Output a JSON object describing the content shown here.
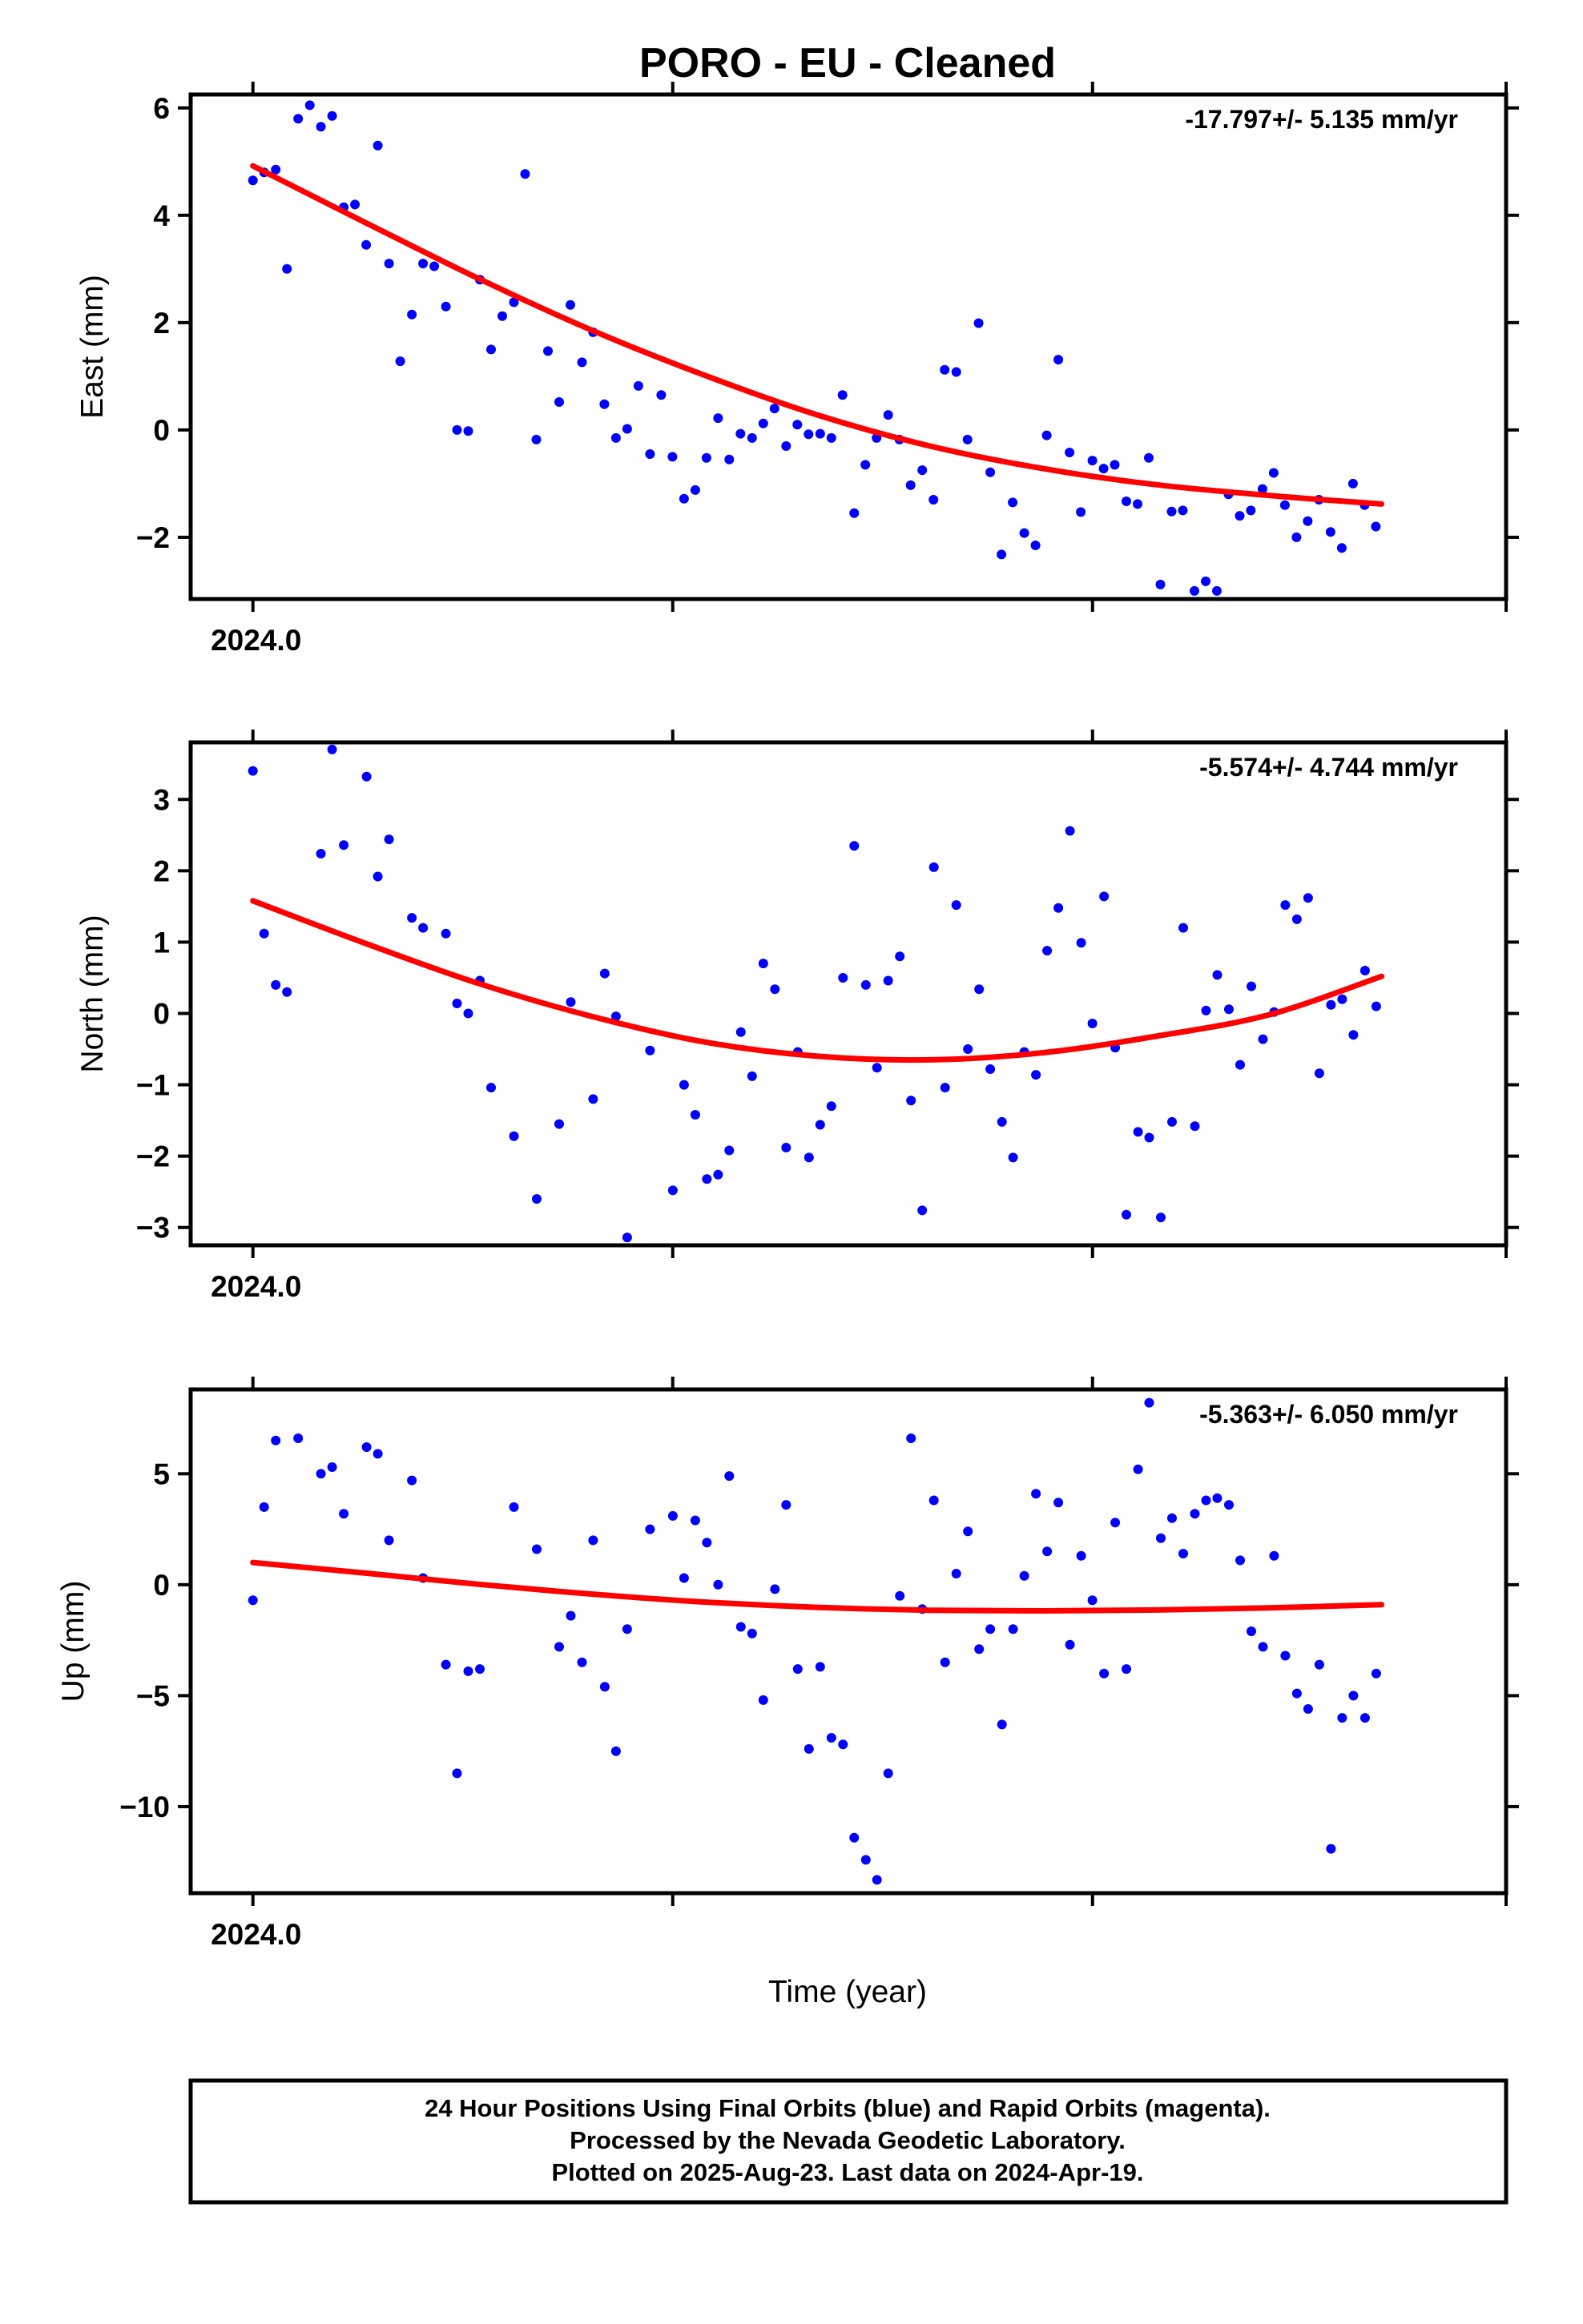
{
  "title": "PORO  - EU - Cleaned",
  "colors": {
    "points": "#0000ff",
    "fit": "#ff0000",
    "frame": "#000000"
  },
  "chart_data": [
    {
      "type": "scatter",
      "ylabel": "East (mm)",
      "rate_text": "-17.797+/- 5.135 mm/yr",
      "xtick_label": "2024.0",
      "xlim": [
        2023.985,
        2024.302
      ],
      "ylim": [
        -3.15,
        6.25
      ],
      "yticks": [
        -2,
        0,
        2,
        4,
        6
      ],
      "ytick_labels": [
        "−2",
        "0",
        "2",
        "4",
        "6"
      ],
      "x": [
        2024.0,
        2024.0027,
        2024.0055,
        2024.0082,
        2024.0109,
        2024.0137,
        2024.0164,
        2024.0191,
        2024.0219,
        2024.0246,
        2024.0273,
        2024.0301,
        2024.0328,
        2024.0355,
        2024.0383,
        2024.041,
        2024.0437,
        2024.0465,
        2024.0492,
        2024.0519,
        2024.0547,
        2024.0574,
        2024.0601,
        2024.0629,
        2024.0656,
        2024.0683,
        2024.0711,
        2024.0738,
        2024.0765,
        2024.0793,
        2024.082,
        2024.0847,
        2024.0875,
        2024.0902,
        2024.0929,
        2024.0957,
        2024.0984,
        2024.1011,
        2024.1039,
        2024.1066,
        2024.1093,
        2024.1121,
        2024.1148,
        2024.1175,
        2024.1203,
        2024.123,
        2024.1257,
        2024.1285,
        2024.1312,
        2024.1339,
        2024.1367,
        2024.1394,
        2024.1421,
        2024.1449,
        2024.1476,
        2024.1503,
        2024.1531,
        2024.1558,
        2024.1585,
        2024.1613,
        2024.164,
        2024.1667,
        2024.1695,
        2024.1722,
        2024.1749,
        2024.1777,
        2024.1804,
        2024.1831,
        2024.1859,
        2024.1886,
        2024.1913,
        2024.1941,
        2024.1968,
        2024.1995,
        2024.2023,
        2024.205,
        2024.2077,
        2024.2105,
        2024.2132,
        2024.2159,
        2024.2187,
        2024.2214,
        2024.2241,
        2024.2269,
        2024.2296,
        2024.2323,
        2024.2351,
        2024.2378,
        2024.2405,
        2024.2433,
        2024.246,
        2024.2487,
        2024.2515,
        2024.2542,
        2024.2569,
        2024.2597,
        2024.2624,
        2024.2651,
        2024.2679,
        2024.2706
      ],
      "y": [
        4.65,
        4.8,
        4.85,
        3.0,
        5.8,
        6.05,
        5.65,
        5.85,
        4.15,
        4.2,
        3.45,
        5.3,
        3.1,
        1.28,
        2.15,
        3.1,
        3.05,
        2.3,
        0.0,
        -0.02,
        2.8,
        1.5,
        2.12,
        2.38,
        4.77,
        -0.18,
        1.47,
        0.52,
        2.33,
        1.26,
        1.82,
        0.48,
        -0.15,
        0.02,
        0.82,
        -0.45,
        0.65,
        -0.5,
        -1.28,
        -1.12,
        -0.52,
        0.22,
        -0.55,
        -0.07,
        -0.15,
        0.12,
        0.4,
        -0.3,
        0.1,
        -0.08,
        -0.07,
        -0.15,
        0.65,
        -1.55,
        -0.65,
        -0.15,
        0.28,
        -0.18,
        -1.03,
        -0.75,
        -1.3,
        1.12,
        1.08,
        -0.18,
        1.99,
        -0.79,
        -2.32,
        -1.35,
        -1.92,
        -2.15,
        -0.1,
        1.31,
        -0.42,
        -1.53,
        -0.57,
        -0.72,
        -0.65,
        -1.33,
        -1.38,
        -0.52,
        -2.88,
        -1.52,
        -1.5,
        -3.0,
        -2.82,
        -3.0,
        -1.2,
        -1.6,
        -1.5,
        -1.1,
        -0.8,
        -1.4,
        -2.0,
        -1.7,
        -1.3,
        -1.9,
        -2.2,
        -1.0,
        -1.4,
        -1.8
      ],
      "fit_x": [
        2024.0,
        2024.0272,
        2024.0544,
        2024.0816,
        2024.1088,
        2024.136,
        2024.1632,
        2024.1904,
        2024.2176,
        2024.2448,
        2024.272
      ],
      "fit_y": [
        4.92,
        3.86,
        2.82,
        1.86,
        1.02,
        0.28,
        -0.3,
        -0.72,
        -1.02,
        -1.22,
        -1.38
      ]
    },
    {
      "type": "scatter",
      "ylabel": "North (mm)",
      "rate_text": "-5.574+/- 4.744 mm/yr",
      "xtick_label": "2024.0",
      "xlim": [
        2023.985,
        2024.302
      ],
      "ylim": [
        -3.25,
        3.8
      ],
      "yticks": [
        -3,
        -2,
        -1,
        0,
        1,
        2,
        3
      ],
      "ytick_labels": [
        "−3",
        "−2",
        "−1",
        "0",
        "1",
        "2",
        "3"
      ],
      "x": [
        2024.0,
        2024.0027,
        2024.0055,
        2024.0082,
        2024.0164,
        2024.0191,
        2024.0219,
        2024.0274,
        2024.0301,
        2024.0328,
        2024.0383,
        2024.041,
        2024.0465,
        2024.0492,
        2024.0519,
        2024.0547,
        2024.0574,
        2024.0629,
        2024.0684,
        2024.0738,
        2024.0766,
        2024.082,
        2024.0848,
        2024.0875,
        2024.0902,
        2024.0957,
        2024.1012,
        2024.1039,
        2024.1066,
        2024.1094,
        2024.1121,
        2024.1148,
        2024.1176,
        2024.1203,
        2024.123,
        2024.1258,
        2024.1285,
        2024.1313,
        2024.134,
        2024.1367,
        2024.1394,
        2024.1422,
        2024.1449,
        2024.1477,
        2024.1504,
        2024.1531,
        2024.1559,
        2024.1586,
        2024.1613,
        2024.1641,
        2024.1668,
        2024.1695,
        2024.1723,
        2024.175,
        2024.1777,
        2024.1805,
        2024.1832,
        2024.1859,
        2024.1887,
        2024.1914,
        2024.1941,
        2024.1969,
        2024.1996,
        2024.2023,
        2024.2051,
        2024.2078,
        2024.2105,
        2024.2133,
        2024.216,
        2024.2188,
        2024.2215,
        2024.2242,
        2024.227,
        2024.2297,
        2024.2324,
        2024.2352,
        2024.2379,
        2024.2406,
        2024.2434,
        2024.2461,
        2024.2488,
        2024.2516,
        2024.2543,
        2024.257,
        2024.2598,
        2024.2625,
        2024.2652,
        2024.268,
        2024.2707
      ],
      "y": [
        3.4,
        1.12,
        0.4,
        0.3,
        2.24,
        3.7,
        2.36,
        3.32,
        1.92,
        2.44,
        1.34,
        1.2,
        1.12,
        0.14,
        0.0,
        0.46,
        -1.04,
        -1.72,
        -2.6,
        -1.55,
        0.16,
        -1.2,
        0.56,
        -0.04,
        -3.14,
        -0.52,
        -2.48,
        -1.0,
        -1.42,
        -2.32,
        -2.26,
        -1.92,
        -0.26,
        -0.88,
        0.7,
        0.34,
        -1.88,
        -0.54,
        -2.02,
        -1.56,
        -1.3,
        0.5,
        2.35,
        0.4,
        -0.76,
        0.46,
        0.8,
        -1.22,
        -2.76,
        2.05,
        -1.04,
        1.52,
        -0.5,
        0.34,
        -0.78,
        -1.52,
        -2.02,
        -0.54,
        -0.86,
        0.88,
        1.48,
        2.56,
        0.99,
        -0.14,
        1.64,
        -0.48,
        -2.82,
        -1.66,
        -1.74,
        -2.86,
        -1.52,
        1.2,
        -1.58,
        0.04,
        0.54,
        0.06,
        -0.72,
        0.38,
        -0.36,
        0.02,
        1.52,
        1.32,
        1.62,
        -0.84,
        0.12,
        0.2,
        -0.3,
        0.6,
        0.1
      ],
      "fit_x": [
        2024.0,
        2024.0272,
        2024.0544,
        2024.0816,
        2024.1088,
        2024.136,
        2024.1632,
        2024.1904,
        2024.2176,
        2024.2448,
        2024.272
      ],
      "fit_y": [
        1.58,
        0.98,
        0.42,
        -0.04,
        -0.4,
        -0.6,
        -0.65,
        -0.55,
        -0.32,
        -0.02,
        0.52
      ]
    },
    {
      "type": "scatter",
      "ylabel": "Up (mm)",
      "rate_text": "-5.363+/- 6.050 mm/yr",
      "xtick_label": "2024.0",
      "xlim": [
        2023.985,
        2024.302
      ],
      "ylim": [
        -13.9,
        8.8
      ],
      "yticks": [
        -10,
        -5,
        0,
        5
      ],
      "ytick_labels": [
        "−10",
        "−5",
        "0",
        "5"
      ],
      "x": [
        2024.0,
        2024.0027,
        2024.0055,
        2024.0109,
        2024.0164,
        2024.0191,
        2024.0219,
        2024.0274,
        2024.0301,
        2024.0328,
        2024.0383,
        2024.041,
        2024.0465,
        2024.0492,
        2024.0519,
        2024.0547,
        2024.0629,
        2024.0684,
        2024.0738,
        2024.0766,
        2024.0793,
        2024.082,
        2024.0848,
        2024.0875,
        2024.0902,
        2024.0957,
        2024.1012,
        2024.1039,
        2024.1066,
        2024.1094,
        2024.1121,
        2024.1148,
        2024.1176,
        2024.1203,
        2024.123,
        2024.1258,
        2024.1285,
        2024.1313,
        2024.134,
        2024.1367,
        2024.1394,
        2024.1422,
        2024.1449,
        2024.1477,
        2024.1504,
        2024.1531,
        2024.1559,
        2024.1586,
        2024.1613,
        2024.1641,
        2024.1668,
        2024.1695,
        2024.1723,
        2024.175,
        2024.1777,
        2024.1805,
        2024.1832,
        2024.1859,
        2024.1887,
        2024.1914,
        2024.1941,
        2024.1969,
        2024.1996,
        2024.2023,
        2024.2051,
        2024.2078,
        2024.2105,
        2024.2133,
        2024.216,
        2024.2188,
        2024.2215,
        2024.2242,
        2024.227,
        2024.2297,
        2024.2324,
        2024.2352,
        2024.2379,
        2024.2406,
        2024.2434,
        2024.2461,
        2024.2488,
        2024.2516,
        2024.2543,
        2024.257,
        2024.2598,
        2024.2625,
        2024.2652,
        2024.268,
        2024.2707
      ],
      "y": [
        -0.7,
        3.5,
        6.5,
        6.6,
        5.0,
        5.3,
        3.2,
        6.2,
        5.9,
        2.0,
        4.7,
        0.3,
        -3.6,
        -8.5,
        -3.9,
        -3.8,
        3.5,
        1.6,
        -2.8,
        -1.4,
        -3.5,
        2.0,
        -4.6,
        -7.5,
        -2.0,
        2.5,
        3.1,
        0.3,
        2.9,
        1.9,
        0.0,
        4.9,
        -1.9,
        -2.2,
        -5.2,
        -0.2,
        3.6,
        -3.8,
        -7.4,
        -3.7,
        -6.9,
        -7.2,
        -11.4,
        -12.4,
        -13.3,
        -8.5,
        -0.5,
        6.6,
        -1.1,
        3.8,
        -3.5,
        0.5,
        2.4,
        -2.9,
        -2.0,
        -6.3,
        -2.0,
        0.4,
        4.1,
        1.5,
        3.7,
        -2.7,
        1.3,
        -0.7,
        -4.0,
        2.8,
        -3.8,
        5.2,
        8.2,
        2.1,
        3.0,
        1.4,
        3.2,
        3.8,
        3.9,
        3.6,
        1.1,
        -2.1,
        -2.8,
        1.3,
        -3.2,
        -4.9,
        -5.6,
        -3.6,
        -11.9,
        -6.0,
        -5.0,
        -6.0,
        -4.0
      ],
      "fit_x": [
        2024.0,
        2024.0272,
        2024.0544,
        2024.0816,
        2024.1088,
        2024.136,
        2024.1632,
        2024.1904,
        2024.2176,
        2024.2448,
        2024.272
      ],
      "fit_y": [
        1.0,
        0.52,
        0.02,
        -0.42,
        -0.78,
        -1.02,
        -1.15,
        -1.18,
        -1.14,
        -1.04,
        -0.9
      ]
    }
  ],
  "xlabel": "Time (year)",
  "footer": {
    "line1": "24 Hour Positions Using Final Orbits (blue) and Rapid Orbits (magenta).",
    "line2": "Processed by the Nevada Geodetic Laboratory.",
    "line3": "Plotted on 2025-Aug-23. Last data on 2024-Apr-19."
  }
}
